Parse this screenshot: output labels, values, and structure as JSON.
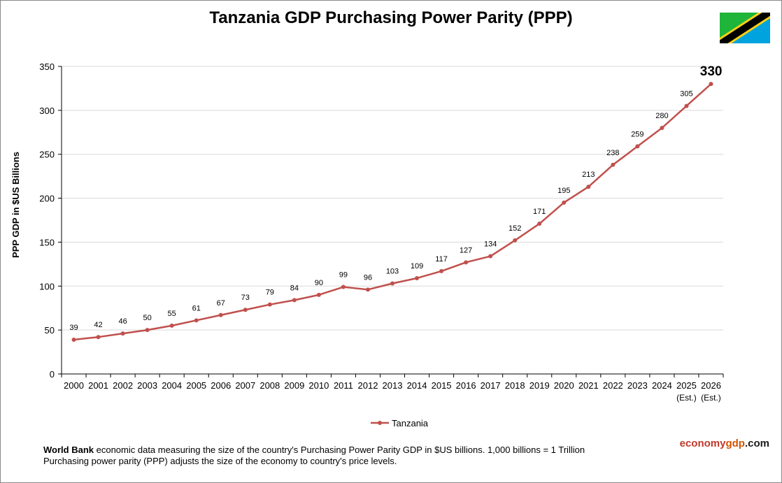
{
  "colors": {
    "series": "#c0504d",
    "grid": "#d9d9d9",
    "axis": "#000000",
    "flag_green": "#1eb53a",
    "flag_blue": "#00a3dd",
    "flag_yellow": "#fcd116",
    "flag_black": "#000000"
  },
  "chart_data": {
    "type": "line",
    "title": "Tanzania GDP Purchasing Power Parity (PPP)",
    "xlabel": "",
    "ylabel": "PPP GDP in $US Billions",
    "ylim": [
      0,
      350
    ],
    "yticks": [
      0,
      50,
      100,
      150,
      200,
      250,
      300,
      350
    ],
    "grid": true,
    "legend_position": "bottom",
    "categories": [
      "2000",
      "2001",
      "2002",
      "2003",
      "2004",
      "2005",
      "2006",
      "2007",
      "2008",
      "2009",
      "2010",
      "2011",
      "2012",
      "2013",
      "2014",
      "2015",
      "2016",
      "2017",
      "2018",
      "2019",
      "2020",
      "2021",
      "2022",
      "2023",
      "2024",
      "2025",
      "2026"
    ],
    "category_sublabels": [
      "",
      "",
      "",
      "",
      "",
      "",
      "",
      "",
      "",
      "",
      "",
      "",
      "",
      "",
      "",
      "",
      "",
      "",
      "",
      "",
      "",
      "",
      "",
      "",
      "",
      "(Est.)",
      "(Est.)"
    ],
    "series": [
      {
        "name": "Tanzania",
        "values": [
          39,
          42,
          46,
          50,
          55,
          61,
          67,
          73,
          79,
          84,
          90,
          99,
          96,
          103,
          109,
          117,
          127,
          134,
          152,
          171,
          195,
          213,
          238,
          259,
          280,
          305,
          330
        ]
      }
    ]
  },
  "footer": {
    "bold": "World Bank",
    "line1": " economic data measuring the size of the country's Purchasing Power Parity GDP in $US billions. 1,000 billions = 1 Trillion",
    "line2": "Purchasing power parity (PPP) adjusts the size of the economy to country's price levels."
  },
  "brand": {
    "part1": "economy",
    "part2": "gdp",
    "part3": ".com"
  }
}
